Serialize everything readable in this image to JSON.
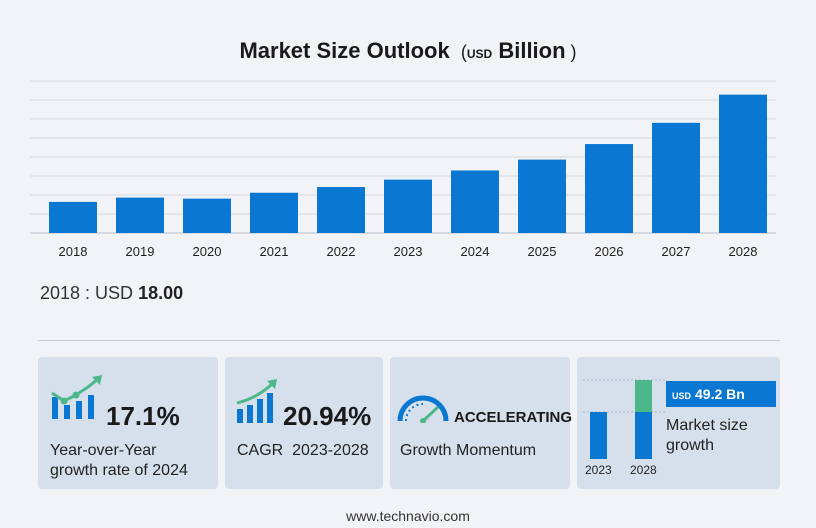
{
  "header": {
    "title": "Market Size Outlook",
    "unit_prefix": "USD",
    "unit": "Billion"
  },
  "chart_data": {
    "type": "bar",
    "title": "Market Size Outlook (USD Billion)",
    "categories": [
      "2018",
      "2019",
      "2020",
      "2021",
      "2022",
      "2023",
      "2024",
      "2025",
      "2026",
      "2027",
      "2028"
    ],
    "values": [
      18.0,
      20.5,
      19.9,
      23.3,
      26.6,
      30.9,
      36.2,
      42.5,
      51.5,
      63.8,
      80.1
    ],
    "ylim": [
      0,
      88
    ],
    "bar_color": "#0a78d2",
    "grid": true
  },
  "base": {
    "year_label": "2018 : USD",
    "value": "18.00"
  },
  "cards": {
    "yoy": {
      "value": "17.1%",
      "line1": "Year-over-Year",
      "line2": "growth rate of 2024"
    },
    "cagr": {
      "value": "20.94%",
      "line1": "CAGR  2023-2028"
    },
    "momentum": {
      "value": "ACCELERATING",
      "line1": "Growth Momentum"
    },
    "size": {
      "unit_prefix": "USD",
      "value": "49.2 Bn",
      "line1": "Market size",
      "line2": "growth",
      "year_start": "2023",
      "year_end": "2028"
    }
  },
  "colors": {
    "accent": "#0a78d2",
    "growth_green": "#4cb88a",
    "card_bg": "#d6e0ec",
    "background": "#f2f3f7"
  },
  "footer": {
    "site": "www.technavio.com"
  }
}
